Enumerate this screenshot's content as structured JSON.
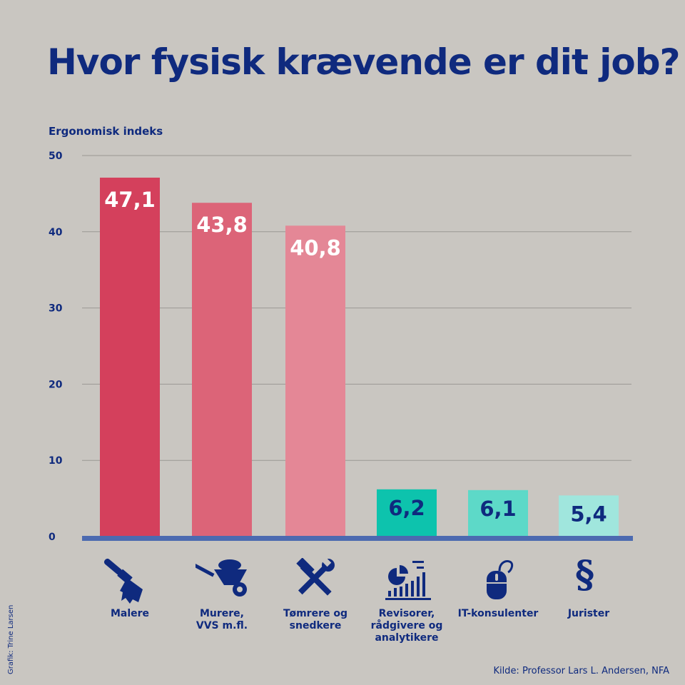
{
  "title": "Hvor fysisk krævende er dit job?",
  "credit": "Grafik: Trine Larsen",
  "source": "Kilde: Professor Lars L. Andersen, NFA",
  "colors": {
    "background": "#c9c6c1",
    "text": "#0f2a7e",
    "baseline": "#4c6ab0",
    "grid": "#9a9894"
  },
  "chart_data": {
    "type": "bar",
    "ylabel": "Ergonomisk indeks",
    "ylim": [
      0,
      50
    ],
    "yticks": [
      0,
      10,
      20,
      30,
      40,
      50
    ],
    "grid": true,
    "categories": [
      "Malere",
      "Murere, VVS m.fl.",
      "Tømrere og snedkere",
      "Revisorer, rådgivere og analytikere",
      "IT-konsulenter",
      "Jurister"
    ],
    "category_lines": [
      [
        "Malere"
      ],
      [
        "Murere,",
        "VVS m.fl."
      ],
      [
        "Tømrere og",
        "snedkere"
      ],
      [
        "Revisorer,",
        "rådgivere og",
        "analytikere"
      ],
      [
        "IT-konsulenter"
      ],
      [
        "Jurister"
      ]
    ],
    "values": [
      47.1,
      43.8,
      40.8,
      6.2,
      6.1,
      5.4
    ],
    "value_labels": [
      "47,1",
      "43,8",
      "40,8",
      "6,2",
      "6,1",
      "5,4"
    ],
    "bar_colors": [
      "#d4405c",
      "#dc6478",
      "#e48796",
      "#0dc3ad",
      "#5dd9c8",
      "#a0e6dd"
    ],
    "label_colors": [
      "#ffffff",
      "#ffffff",
      "#ffffff",
      "#0f2a7e",
      "#0f2a7e",
      "#0f2a7e"
    ],
    "icons": [
      "paintbrush-icon",
      "wheelbarrow-icon",
      "hammer-wrench-icon",
      "chart-report-icon",
      "computer-mouse-icon",
      "paragraph-icon"
    ]
  }
}
